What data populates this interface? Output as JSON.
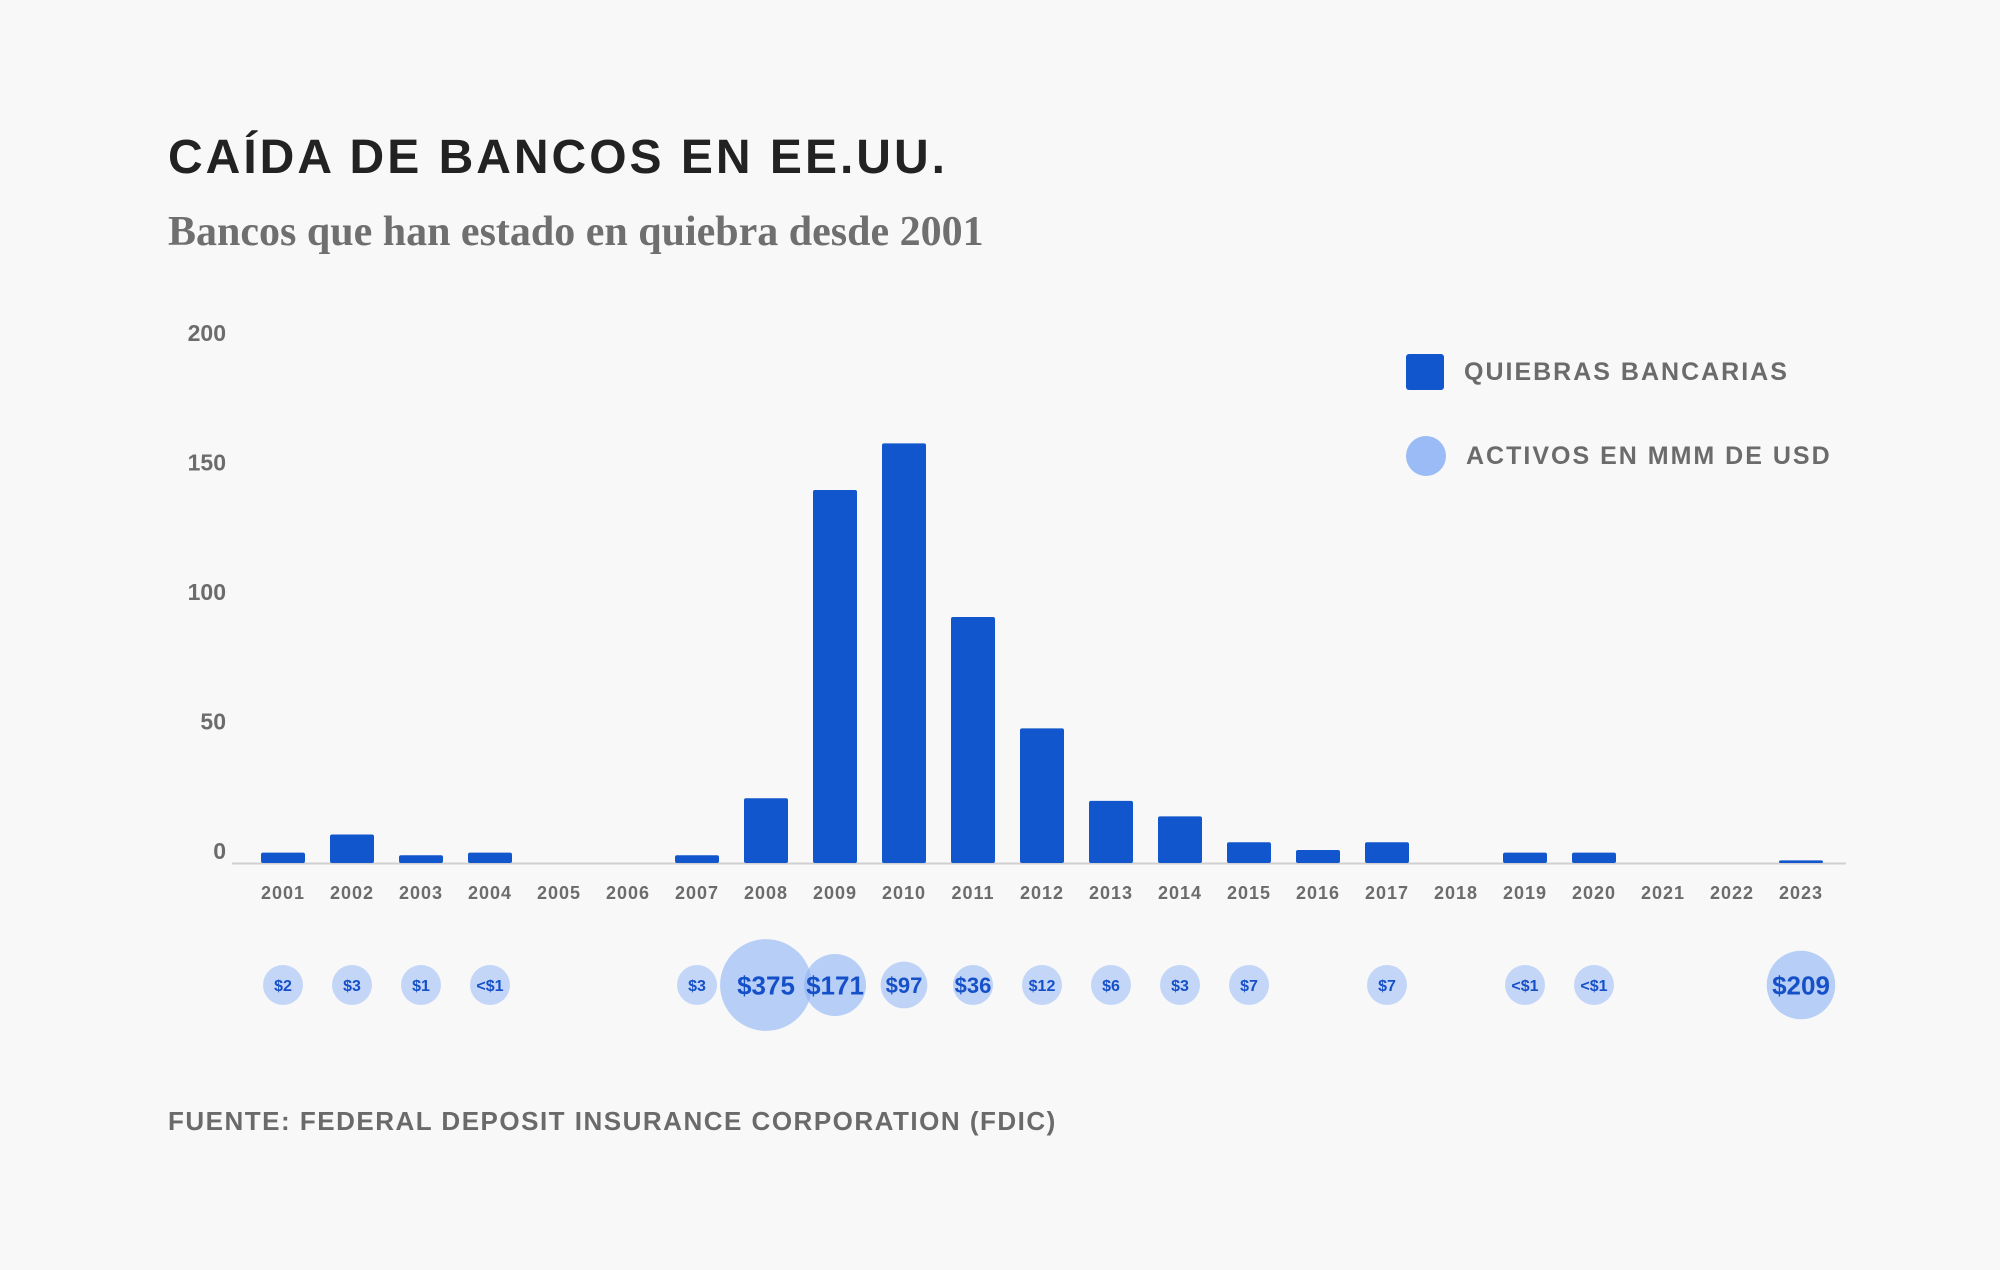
{
  "header": {
    "title": "CAÍDA DE BANCOS EN EE.UU.",
    "subtitle": "Bancos que han estado en quiebra desde 2001"
  },
  "footer": {
    "source": "FUENTE: FEDERAL DEPOSIT INSURANCE CORPORATION (FDIC)"
  },
  "legend": {
    "bars_label": "QUIEBRAS BANCARIAS",
    "bubbles_label": "ACTIVOS EN MMM DE USD"
  },
  "colors": {
    "bar": "#1156cc",
    "bubble": "#8fb4f5",
    "bubble_label": "#1650c8",
    "axis_text": "#6c6c6c"
  },
  "chart_data": {
    "type": "bar",
    "categories": [
      "2001",
      "2002",
      "2003",
      "2004",
      "2005",
      "2006",
      "2007",
      "2008",
      "2009",
      "2010",
      "2011",
      "2012",
      "2013",
      "2014",
      "2015",
      "2016",
      "2017",
      "2018",
      "2019",
      "2020",
      "2021",
      "2022",
      "2023"
    ],
    "series": [
      {
        "name": "QUIEBRAS BANCARIAS",
        "values": [
          4,
          11,
          3,
          4,
          0,
          0,
          3,
          25,
          144,
          162,
          95,
          52,
          24,
          18,
          8,
          5,
          8,
          0,
          4,
          4,
          0,
          0,
          1
        ]
      }
    ],
    "ylim": [
      0,
      200
    ],
    "yticks": [
      0,
      50,
      100,
      150,
      200
    ],
    "assets": {
      "name": "ACTIVOS EN MMM DE USD",
      "values": [
        2,
        3,
        1,
        0.5,
        null,
        null,
        3,
        375,
        171,
        97,
        36,
        12,
        6,
        3,
        7,
        null,
        7,
        null,
        0.5,
        0.5,
        null,
        null,
        209
      ],
      "labels": [
        "$2",
        "$3",
        "$1",
        "<$1",
        "",
        "",
        "$3",
        "$375",
        "$171",
        "$97",
        "$36",
        "$12",
        "$6",
        "$3",
        "$7",
        "",
        "$7",
        "",
        "<$1",
        "<$1",
        "",
        "",
        "$209"
      ]
    },
    "legend_position": "top-right",
    "grid": false
  }
}
